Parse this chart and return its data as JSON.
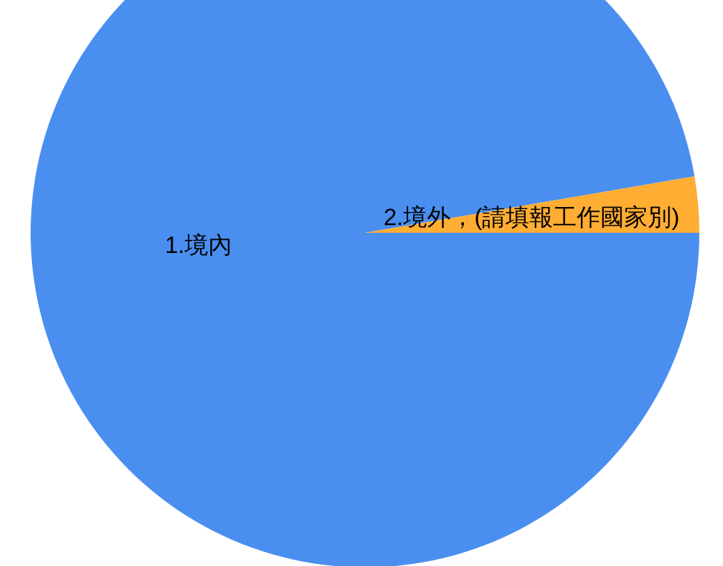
{
  "chart_data": {
    "type": "pie",
    "categories": [
      "1.境內",
      "2.境外，(請填報工作國家別)"
    ],
    "values": [
      97.3,
      2.7
    ],
    "colors": [
      "#4a8ff0",
      "#ffad33"
    ]
  }
}
